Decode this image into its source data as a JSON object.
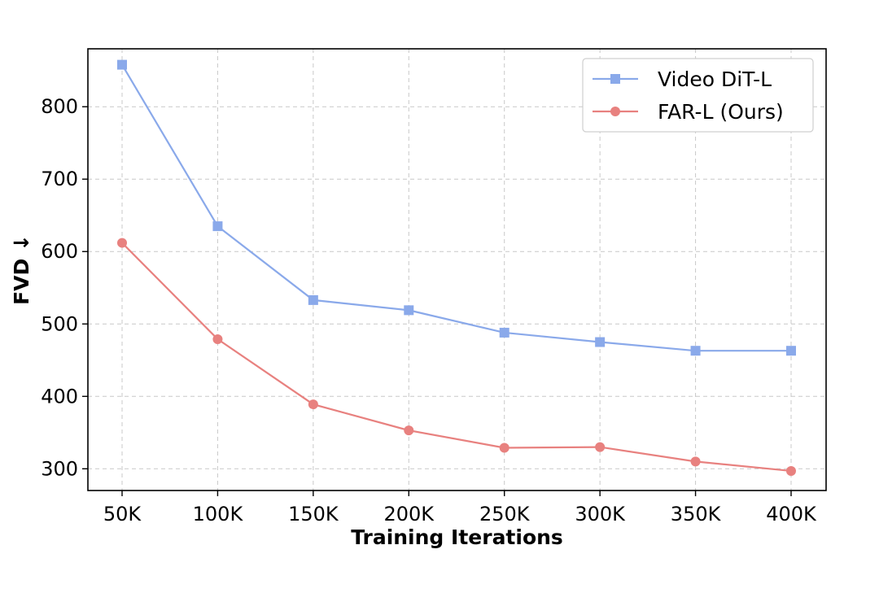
{
  "chart_data": {
    "type": "line",
    "title": "",
    "xlabel": "Training Iterations",
    "ylabel": "FVD ↓",
    "categories": [
      "50K",
      "100K",
      "150K",
      "200K",
      "250K",
      "300K",
      "350K",
      "400K"
    ],
    "yticks": [
      300,
      400,
      500,
      600,
      700,
      800
    ],
    "ylim": [
      270,
      880
    ],
    "grid": true,
    "legend_position": "top-right",
    "series": [
      {
        "name": "Video DiT-L",
        "marker": "square",
        "color": "#8aa9ea",
        "values": [
          858,
          635,
          533,
          519,
          488,
          475,
          463,
          463
        ]
      },
      {
        "name": "FAR-L (Ours)",
        "marker": "circle",
        "color": "#e8817f",
        "values": [
          612,
          479,
          389,
          353,
          329,
          330,
          310,
          297
        ]
      }
    ]
  }
}
